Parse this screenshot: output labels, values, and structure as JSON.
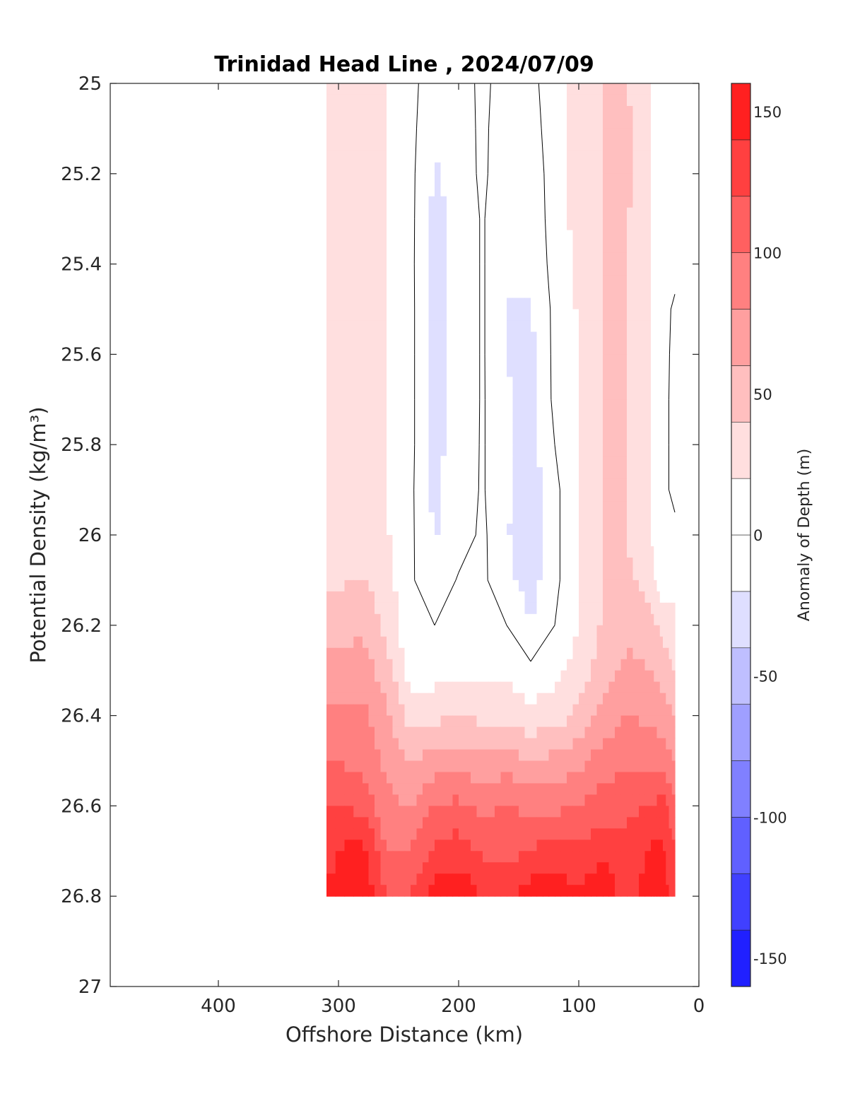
{
  "chart_data": {
    "type": "heatmap",
    "title": "Trinidad Head Line , 2024/07/09",
    "xlabel": "Offshore Distance (km)",
    "ylabel": "Potential Density (kg/m³)",
    "xlim": [
      490,
      0
    ],
    "ylim": [
      25,
      27
    ],
    "x_reversed": true,
    "y_reversed": true,
    "xticks": [
      400,
      300,
      200,
      100,
      0
    ],
    "yticks": [
      25,
      25.2,
      25.4,
      25.6,
      25.8,
      26,
      26.2,
      26.4,
      26.6,
      26.8,
      27
    ],
    "colorbar": {
      "label": "Anomaly of Depth (m)",
      "range": [
        -160,
        160
      ],
      "step": 20,
      "ticks": [
        150,
        100,
        50,
        0,
        -50,
        -100,
        -150
      ],
      "low_color": "#0000ff",
      "mid_color": "#ffffff",
      "high_color": "#ff0000"
    },
    "grid": false,
    "x": [
      310,
      280,
      260,
      240,
      220,
      200,
      180,
      160,
      140,
      120,
      100,
      80,
      60,
      40,
      30,
      20
    ],
    "y": [
      25.0,
      25.1,
      25.2,
      25.3,
      25.4,
      25.5,
      25.6,
      25.7,
      25.8,
      25.9,
      26.0,
      26.1,
      26.2,
      26.3,
      26.4,
      26.5,
      26.6,
      26.7,
      26.8
    ],
    "z": [
      [
        22,
        30,
        20,
        5,
        -10,
        -10,
        5,
        -10,
        -5,
        10,
        30,
        40,
        40,
        20,
        10,
        10
      ],
      [
        22,
        32,
        22,
        5,
        -15,
        -12,
        5,
        -15,
        -8,
        10,
        30,
        40,
        45,
        20,
        10,
        10
      ],
      [
        25,
        32,
        22,
        5,
        -22,
        -14,
        5,
        -18,
        -10,
        8,
        30,
        40,
        45,
        20,
        10,
        10
      ],
      [
        25,
        32,
        22,
        5,
        -25,
        -14,
        2,
        -20,
        -12,
        8,
        28,
        40,
        42,
        20,
        10,
        10
      ],
      [
        25,
        32,
        22,
        5,
        -27,
        -14,
        2,
        -20,
        -15,
        7,
        25,
        40,
        40,
        20,
        10,
        10
      ],
      [
        25,
        32,
        22,
        5,
        -25,
        -14,
        2,
        -20,
        -22,
        5,
        22,
        40,
        40,
        20,
        10,
        -5
      ],
      [
        25,
        32,
        22,
        5,
        -25,
        -14,
        2,
        -20,
        -25,
        5,
        20,
        40,
        40,
        20,
        10,
        -8
      ],
      [
        25,
        32,
        22,
        5,
        -25,
        -14,
        2,
        -18,
        -28,
        5,
        18,
        40,
        40,
        20,
        10,
        -10
      ],
      [
        25,
        32,
        22,
        5,
        -25,
        -12,
        2,
        -18,
        -30,
        0,
        18,
        40,
        40,
        20,
        10,
        -10
      ],
      [
        25,
        32,
        22,
        4,
        -25,
        -10,
        2,
        -18,
        -32,
        -5,
        18,
        40,
        40,
        20,
        10,
        -10
      ],
      [
        25,
        32,
        22,
        4,
        -22,
        -10,
        4,
        -18,
        -35,
        -5,
        18,
        40,
        40,
        20,
        5,
        10
      ],
      [
        35,
        40,
        28,
        3,
        -15,
        2,
        4,
        -15,
        -30,
        -5,
        18,
        40,
        45,
        30,
        0,
        15
      ],
      [
        50,
        55,
        35,
        5,
        0,
        2,
        5,
        0,
        -20,
        0,
        20,
        42,
        55,
        45,
        35,
        25
      ],
      [
        65,
        70,
        50,
        10,
        10,
        15,
        15,
        15,
        5,
        15,
        30,
        50,
        65,
        60,
        50,
        40
      ],
      [
        85,
        85,
        65,
        30,
        35,
        40,
        35,
        35,
        25,
        30,
        45,
        65,
        80,
        75,
        70,
        60
      ],
      [
        100,
        95,
        75,
        60,
        70,
        70,
        65,
        70,
        60,
        65,
        75,
        90,
        95,
        95,
        90,
        80
      ],
      [
        120,
        115,
        85,
        80,
        100,
        105,
        95,
        100,
        95,
        95,
        100,
        110,
        115,
        120,
        130,
        100
      ],
      [
        135,
        150,
        100,
        100,
        125,
        130,
        115,
        115,
        120,
        130,
        125,
        135,
        125,
        145,
        145,
        120
      ],
      [
        140,
        160,
        120,
        120,
        155,
        155,
        140,
        130,
        155,
        150,
        145,
        155,
        130,
        150,
        150,
        130
      ]
    ]
  }
}
